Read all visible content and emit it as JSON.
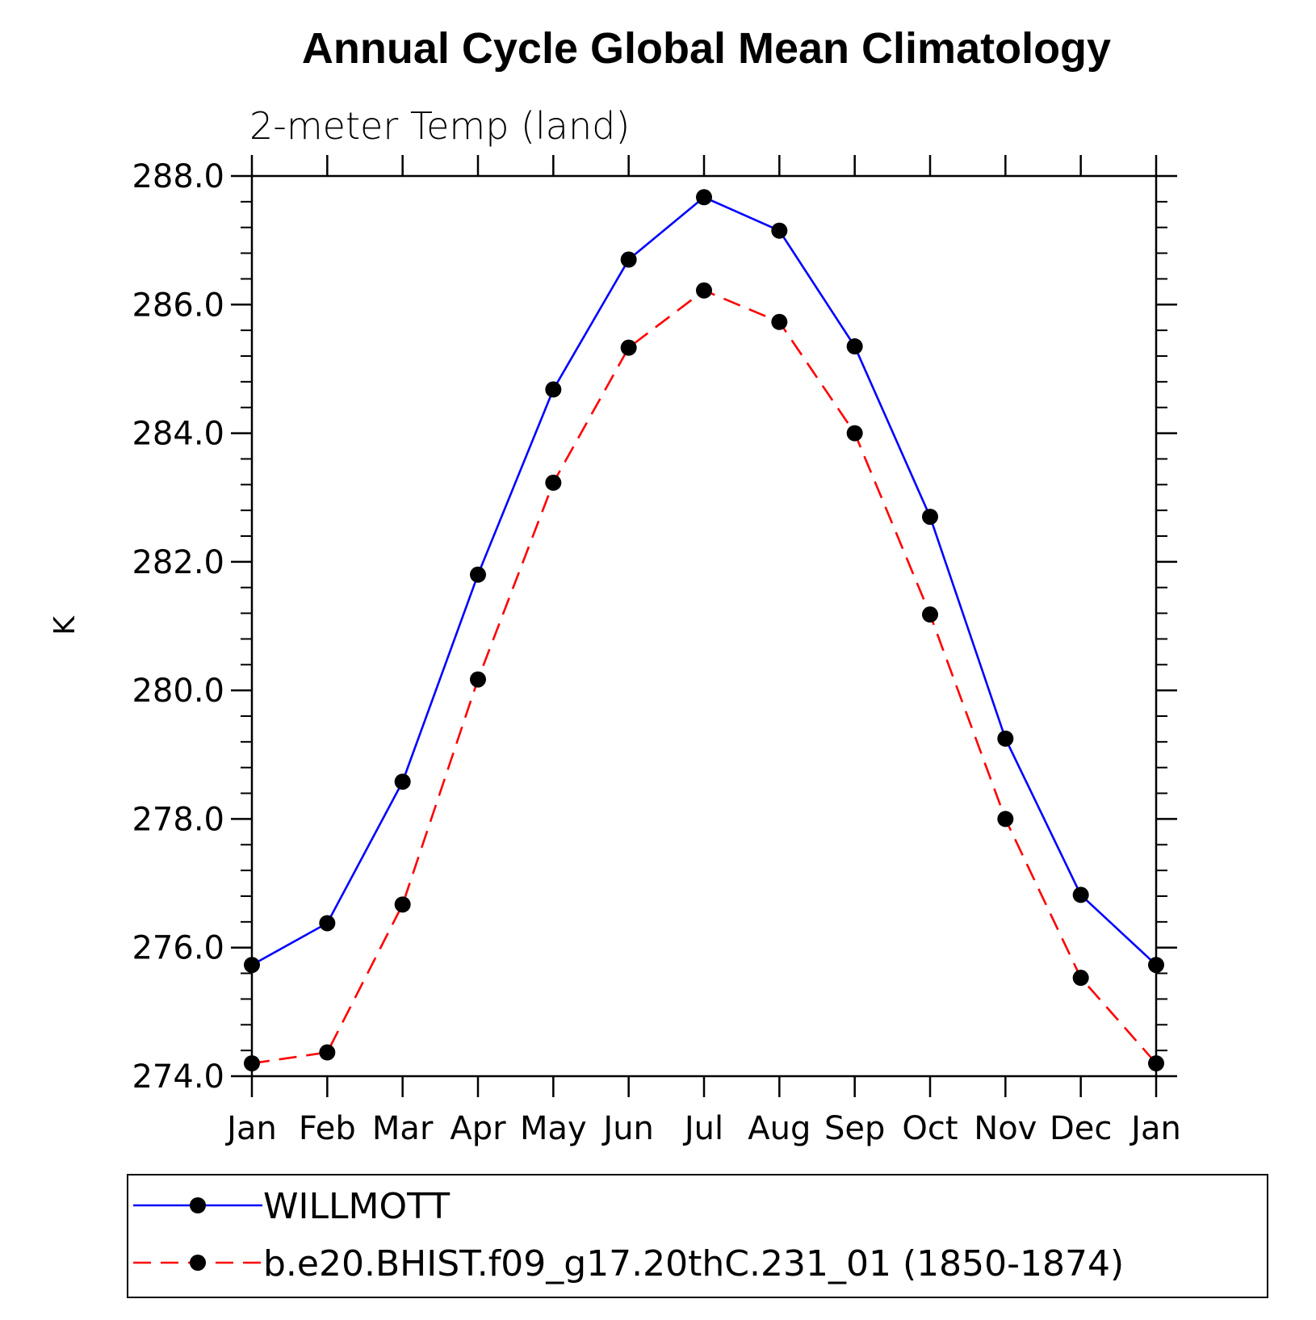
{
  "chart_data": {
    "type": "line",
    "title": "Annual Cycle Global Mean Climatology",
    "subtitle": "2-meter Temp (land)",
    "xlabel": "",
    "ylabel": "K",
    "categories": [
      "Jan",
      "Feb",
      "Mar",
      "Apr",
      "May",
      "Jun",
      "Jul",
      "Aug",
      "Sep",
      "Oct",
      "Nov",
      "Dec",
      "Jan"
    ],
    "ylim": [
      274.0,
      288.0
    ],
    "y_ticks": [
      "274.0",
      "276.0",
      "278.0",
      "280.0",
      "282.0",
      "284.0",
      "286.0",
      "288.0"
    ],
    "grid": false,
    "legend_position": "bottom",
    "series": [
      {
        "name": "WILLMOTT",
        "color": "#0000ff",
        "line_style": "solid",
        "marker": "filled-circle",
        "values": [
          275.73,
          276.38,
          278.58,
          281.8,
          284.68,
          286.7,
          287.67,
          287.15,
          285.35,
          282.7,
          279.25,
          276.82,
          275.73
        ]
      },
      {
        "name": "b.e20.BHIST.f09_g17.20thC.231_01 (1850-1874)",
        "color": "#ff0000",
        "line_style": "dashed",
        "marker": "filled-circle",
        "values": [
          274.2,
          274.37,
          276.67,
          280.17,
          283.23,
          285.33,
          286.22,
          285.73,
          284.0,
          281.18,
          278.0,
          275.53,
          274.2
        ]
      }
    ]
  }
}
